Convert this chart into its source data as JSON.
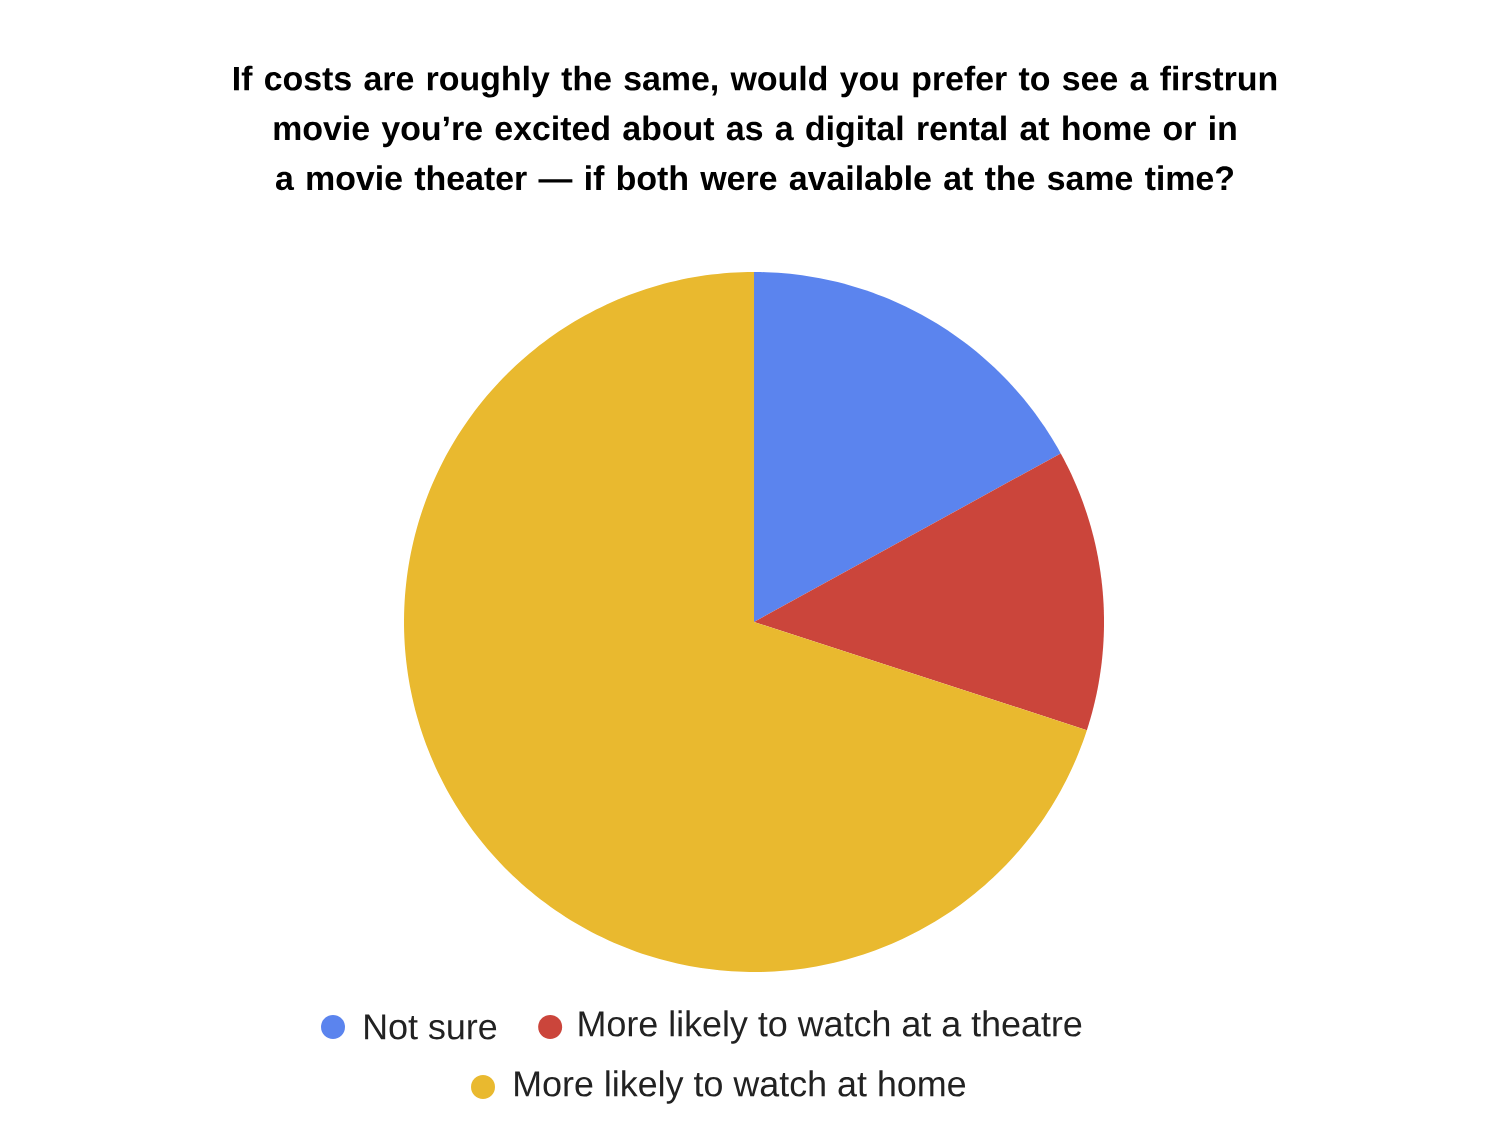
{
  "chart_data": {
    "type": "pie",
    "title": "If costs are roughly the same, would you prefer to see a firstrun movie you’re excited about as a digital rental at home or in a movie theater — if both were available at the same time?",
    "categories": [
      "Not sure",
      "More likely to watch at a theatre",
      "More likely to watch at home"
    ],
    "values": [
      17,
      13,
      70
    ],
    "colors": [
      "#5b84ee",
      "#cb453b",
      "#e9b92f"
    ],
    "legend": "bottom"
  }
}
